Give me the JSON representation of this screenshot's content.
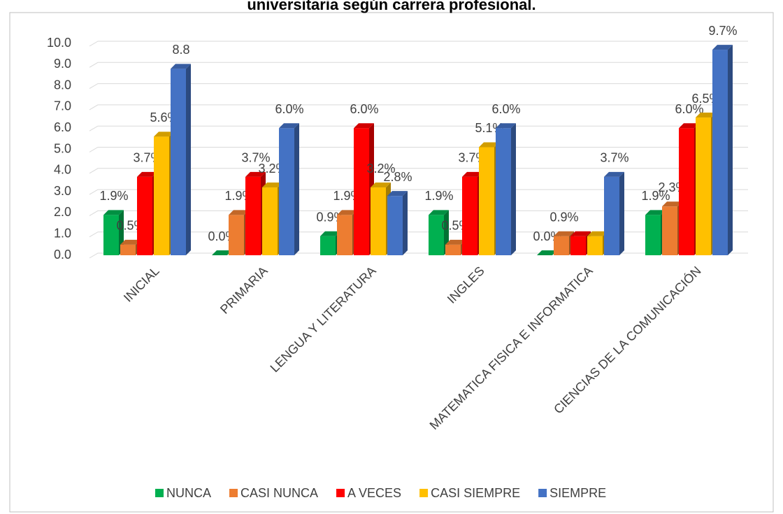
{
  "chart_data": {
    "type": "bar3d",
    "title": "universitaria según carrera profesional.",
    "categories": [
      "INICIAL",
      "PRIMARIA",
      "LENGUA Y LITERATURA",
      "INGLES",
      "MATEMATICA FISICA E INFORMATICA",
      "CIENCIAS DE LA COMUNICACIÓN"
    ],
    "series": [
      {
        "name": "NUNCA",
        "color": "#00b050",
        "values": [
          1.9,
          0.0,
          0.9,
          1.9,
          0.0,
          1.9
        ],
        "value_labels": [
          "1.9%",
          "0.0%",
          "0.9%",
          "1.9%",
          "0.0%",
          "1.9%"
        ]
      },
      {
        "name": "CASI NUNCA",
        "color": "#ed7d31",
        "values": [
          0.5,
          1.9,
          1.9,
          0.5,
          0.9,
          2.3
        ],
        "value_labels": [
          "0.5%",
          "1.9%",
          "1.9%",
          "0.5%",
          "0.9%",
          "2.3%"
        ]
      },
      {
        "name": "A VECES",
        "color": "#ff0000",
        "values": [
          3.7,
          3.7,
          6.0,
          3.7,
          0.9,
          6.0
        ],
        "value_labels": [
          "3.7%",
          "3.7%",
          "6.0%",
          "3.7%",
          null,
          "6.0%"
        ]
      },
      {
        "name": "CASI SIEMPRE",
        "color": "#ffc000",
        "values": [
          5.6,
          3.2,
          3.2,
          5.1,
          0.9,
          6.5
        ],
        "value_labels": [
          "5.6%",
          "3.2%",
          "3.2%",
          "5.1%",
          null,
          "6.5%"
        ]
      },
      {
        "name": "SIEMPRE",
        "color": "#4472c4",
        "values": [
          8.8,
          6.0,
          2.8,
          6.0,
          3.7,
          9.7
        ],
        "value_labels": [
          "8.8",
          "6.0%",
          "2.8%",
          "6.0%",
          "3.7%",
          "9.7%"
        ]
      }
    ],
    "ylim": [
      0,
      10
    ],
    "yticks": [
      {
        "value": 0,
        "label": "0.0"
      },
      {
        "value": 1,
        "label": "1.0"
      },
      {
        "value": 2,
        "label": "2.0"
      },
      {
        "value": 3,
        "label": "3.0"
      },
      {
        "value": 4,
        "label": "4.0"
      },
      {
        "value": 5,
        "label": "5.0"
      },
      {
        "value": 6,
        "label": "6.0"
      },
      {
        "value": 7,
        "label": "7.0"
      },
      {
        "value": 8,
        "label": "8.0"
      },
      {
        "value": 9,
        "label": "9.0"
      },
      {
        "value": 10,
        "label": "10.0"
      }
    ],
    "grid": true,
    "legend": "bottom"
  }
}
